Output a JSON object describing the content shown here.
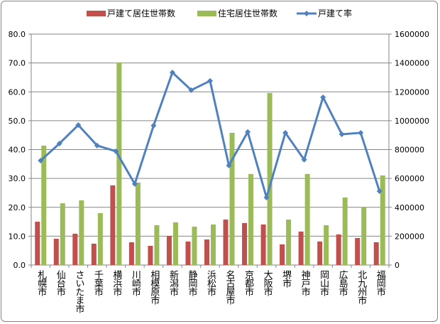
{
  "chart_data": {
    "type": "bar",
    "categories": [
      "札幌市",
      "仙台市",
      "さいたま市",
      "千葉市",
      "横浜市",
      "川崎市",
      "相模原市",
      "新潟市",
      "静岡市",
      "浜松市",
      "名古屋市",
      "京都市",
      "大阪市",
      "堺市",
      "神戸市",
      "岡山市",
      "広島市",
      "北九州市",
      "福岡市"
    ],
    "series": [
      {
        "name": "戸建て居住世帯数",
        "type": "bar",
        "axis": "right",
        "color": "#C0504D",
        "values": [
          300000,
          182000,
          217000,
          148000,
          552000,
          158000,
          133000,
          202000,
          163000,
          177000,
          315000,
          291000,
          281000,
          143000,
          232000,
          163000,
          212000,
          187000,
          158000
        ]
      },
      {
        "name": "住宅居住世帯数",
        "type": "bar",
        "axis": "right",
        "color": "#9BBB59",
        "values": [
          827000,
          428000,
          448000,
          360000,
          1404000,
          571000,
          276000,
          296000,
          266000,
          281000,
          916000,
          631000,
          1192000,
          315000,
          631000,
          276000,
          468000,
          399000,
          621000
        ]
      },
      {
        "name": "戸建て率",
        "type": "line",
        "axis": "left",
        "color": "#4F81BD",
        "values": [
          36.2,
          42.1,
          48.5,
          41.4,
          39.4,
          28.1,
          48.3,
          66.7,
          60.6,
          63.8,
          34.5,
          46.1,
          23.4,
          45.8,
          36.5,
          58.1,
          45.3,
          45.8,
          25.6
        ]
      }
    ],
    "left_axis": {
      "min": 0,
      "max": 80,
      "step": 10,
      "tick_labels": [
        "0.0",
        "10.0",
        "20.0",
        "30.0",
        "40.0",
        "50.0",
        "60.0",
        "70.0",
        "80.0"
      ]
    },
    "right_axis": {
      "min": 0,
      "max": 1600000,
      "step": 200000,
      "tick_labels": [
        "0",
        "200000",
        "400000",
        "600000",
        "800000",
        "1000000",
        "1200000",
        "1400000",
        "1600000"
      ]
    },
    "grid": true,
    "legend_position": "top"
  }
}
